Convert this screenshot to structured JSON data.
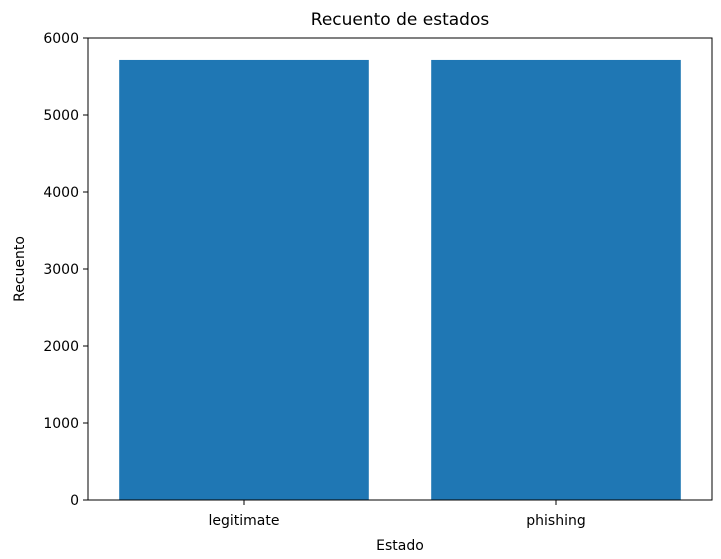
{
  "chart_data": {
    "type": "bar",
    "title": "Recuento de estados",
    "xlabel": "Estado",
    "ylabel": "Recuento",
    "categories": [
      "legitimate",
      "phishing"
    ],
    "values": [
      5715,
      5715
    ],
    "ylim": [
      0,
      6000
    ],
    "yticks": [
      0,
      1000,
      2000,
      3000,
      4000,
      5000,
      6000
    ],
    "bar_color": "#1f77b4",
    "grid": false,
    "legend": "none"
  }
}
